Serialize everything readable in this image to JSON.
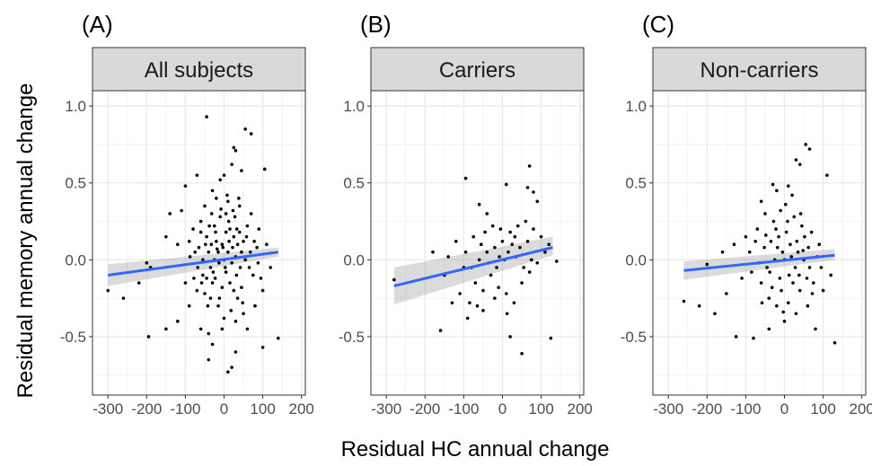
{
  "xlabel": "Residual HC annual change",
  "ylabel": "Residual memory annual change",
  "chart_data": [
    {
      "type": "scatter",
      "panel": "(A)",
      "title": "All subjects",
      "xlim": [
        -340,
        210
      ],
      "ylim": [
        -0.88,
        1.1
      ],
      "xticks": [
        -300,
        -200,
        -100,
        0,
        100,
        200
      ],
      "xtick_labels": [
        "-300",
        "-200",
        "-100",
        "0",
        "100",
        "200"
      ],
      "yticks": [
        -0.5,
        0.0,
        0.5,
        1.0
      ],
      "ytick_labels": [
        "-0.5",
        "0.0",
        "0.5",
        "1.0"
      ],
      "grid": true,
      "fit": {
        "x": [
          -300,
          140
        ],
        "y": [
          -0.1,
          0.05
        ],
        "band_lo": [
          -0.17,
          0.02
        ],
        "band_hi": [
          -0.03,
          0.08
        ]
      },
      "points": [
        [
          -45,
          0.93
        ],
        [
          55,
          0.85
        ],
        [
          70,
          0.82
        ],
        [
          25,
          0.73
        ],
        [
          30,
          0.71
        ],
        [
          105,
          0.59
        ],
        [
          -70,
          0.55
        ],
        [
          -10,
          0.52
        ],
        [
          45,
          0.58
        ],
        [
          20,
          0.62
        ],
        [
          0,
          0.55
        ],
        [
          -30,
          0.45
        ],
        [
          -100,
          0.48
        ],
        [
          -140,
          0.3
        ],
        [
          -150,
          0.15
        ],
        [
          -110,
          0.32
        ],
        [
          -200,
          -0.02
        ],
        [
          -190,
          -0.05
        ],
        [
          -260,
          -0.25
        ],
        [
          -300,
          -0.2
        ],
        [
          -220,
          -0.15
        ],
        [
          -195,
          -0.5
        ],
        [
          -150,
          -0.45
        ],
        [
          -120,
          -0.4
        ],
        [
          -90,
          -0.3
        ],
        [
          -60,
          -0.45
        ],
        [
          -30,
          -0.55
        ],
        [
          -40,
          -0.65
        ],
        [
          20,
          -0.7
        ],
        [
          10,
          -0.73
        ],
        [
          30,
          -0.6
        ],
        [
          60,
          -0.45
        ],
        [
          100,
          -0.57
        ],
        [
          140,
          -0.51
        ],
        [
          -40,
          -0.48
        ],
        [
          -5,
          -0.45
        ],
        [
          -80,
          0.2
        ],
        [
          -60,
          0.25
        ],
        [
          -120,
          0.1
        ],
        [
          -100,
          -0.15
        ],
        [
          -70,
          -0.2
        ],
        [
          -50,
          0.35
        ],
        [
          -20,
          0.4
        ],
        [
          10,
          0.38
        ],
        [
          40,
          0.35
        ],
        [
          70,
          0.3
        ],
        [
          90,
          0.2
        ],
        [
          110,
          0.1
        ],
        [
          120,
          -0.05
        ],
        [
          100,
          -0.2
        ],
        [
          80,
          -0.3
        ],
        [
          50,
          -0.35
        ],
        [
          30,
          -0.4
        ],
        [
          0,
          -0.38
        ],
        [
          -15,
          -0.3
        ],
        [
          -35,
          -0.25
        ],
        [
          -55,
          -0.1
        ],
        [
          -75,
          0.05
        ],
        [
          -90,
          0.12
        ],
        [
          -45,
          0.15
        ],
        [
          -25,
          0.22
        ],
        [
          -10,
          0.28
        ],
        [
          5,
          0.3
        ],
        [
          15,
          0.2
        ],
        [
          25,
          0.15
        ],
        [
          35,
          0.1
        ],
        [
          45,
          0.05
        ],
        [
          55,
          0.0
        ],
        [
          65,
          -0.05
        ],
        [
          75,
          -0.1
        ],
        [
          85,
          0.08
        ],
        [
          95,
          -0.12
        ],
        [
          -5,
          0.1
        ],
        [
          -15,
          0.05
        ],
        [
          -25,
          0.0
        ],
        [
          -35,
          -0.05
        ],
        [
          -45,
          -0.12
        ],
        [
          -55,
          0.0
        ],
        [
          -65,
          0.08
        ],
        [
          5,
          -0.08
        ],
        [
          15,
          -0.15
        ],
        [
          25,
          -0.2
        ],
        [
          35,
          -0.25
        ],
        [
          45,
          -0.18
        ],
        [
          0,
          0.0
        ],
        [
          10,
          0.05
        ],
        [
          20,
          -0.02
        ],
        [
          -20,
          0.12
        ],
        [
          30,
          0.02
        ],
        [
          -30,
          -0.15
        ],
        [
          40,
          0.18
        ],
        [
          -40,
          0.05
        ],
        [
          50,
          0.12
        ],
        [
          -50,
          -0.22
        ],
        [
          60,
          0.22
        ],
        [
          -60,
          0.18
        ],
        [
          5,
          0.18
        ],
        [
          -5,
          -0.18
        ],
        [
          12,
          0.25
        ],
        [
          -12,
          -0.25
        ],
        [
          22,
          0.08
        ],
        [
          -22,
          0.18
        ],
        [
          32,
          -0.1
        ],
        [
          -32,
          0.3
        ],
        [
          42,
          -0.05
        ],
        [
          -42,
          -0.3
        ],
        [
          8,
          0.42
        ],
        [
          -8,
          0.33
        ],
        [
          18,
          -0.33
        ],
        [
          -18,
          0.07
        ],
        [
          28,
          0.28
        ],
        [
          -28,
          -0.08
        ],
        [
          38,
          0.4
        ],
        [
          -38,
          0.22
        ],
        [
          48,
          -0.28
        ],
        [
          -48,
          0.1
        ],
        [
          58,
          0.15
        ],
        [
          -58,
          -0.15
        ],
        [
          68,
          0.05
        ],
        [
          -68,
          -0.05
        ],
        [
          78,
          0.12
        ],
        [
          -78,
          -0.12
        ],
        [
          88,
          -0.02
        ],
        [
          -88,
          0.02
        ],
        [
          3,
          -0.05
        ],
        [
          -3,
          0.08
        ],
        [
          13,
          0.12
        ],
        [
          -13,
          -0.02
        ],
        [
          23,
          0.32
        ],
        [
          -23,
          -0.12
        ],
        [
          33,
          0.2
        ],
        [
          -33,
          0.1
        ]
      ]
    },
    {
      "type": "scatter",
      "panel": "(B)",
      "title": "Carriers",
      "xlim": [
        -340,
        210
      ],
      "ylim": [
        -0.88,
        1.1
      ],
      "xticks": [
        -300,
        -200,
        -100,
        0,
        100,
        200
      ],
      "xtick_labels": [
        "-300",
        "-200",
        "-100",
        "0",
        "100",
        "200"
      ],
      "yticks": [
        -0.5,
        0.0,
        0.5,
        1.0
      ],
      "ytick_labels": [
        "-0.5",
        "0.0",
        "0.5",
        "1.0"
      ],
      "grid": true,
      "fit": {
        "x": [
          -280,
          130
        ],
        "y": [
          -0.17,
          0.08
        ],
        "band_lo": [
          -0.29,
          0.03
        ],
        "band_hi": [
          -0.05,
          0.15
        ]
      },
      "points": [
        [
          -95,
          0.53
        ],
        [
          70,
          0.61
        ],
        [
          65,
          0.47
        ],
        [
          80,
          0.44
        ],
        [
          90,
          0.38
        ],
        [
          10,
          0.49
        ],
        [
          -60,
          0.36
        ],
        [
          -40,
          0.3
        ],
        [
          -120,
          0.12
        ],
        [
          -100,
          -0.05
        ],
        [
          -180,
          0.05
        ],
        [
          -280,
          -0.13
        ],
        [
          -160,
          -0.46
        ],
        [
          -90,
          -0.38
        ],
        [
          -50,
          -0.33
        ],
        [
          -20,
          -0.25
        ],
        [
          20,
          -0.5
        ],
        [
          50,
          -0.61
        ],
        [
          125,
          -0.51
        ],
        [
          140,
          -0.01
        ],
        [
          120,
          0.1
        ],
        [
          100,
          0.15
        ],
        [
          80,
          0.2
        ],
        [
          60,
          0.25
        ],
        [
          40,
          0.22
        ],
        [
          20,
          0.18
        ],
        [
          0,
          0.12
        ],
        [
          -20,
          0.08
        ],
        [
          -40,
          0.05
        ],
        [
          -60,
          0.0
        ],
        [
          -80,
          -0.05
        ],
        [
          -70,
          -0.15
        ],
        [
          -50,
          -0.2
        ],
        [
          -30,
          -0.1
        ],
        [
          -10,
          -0.18
        ],
        [
          10,
          -0.22
        ],
        [
          30,
          -0.28
        ],
        [
          50,
          -0.15
        ],
        [
          70,
          -0.08
        ],
        [
          90,
          -0.02
        ],
        [
          110,
          0.05
        ],
        [
          -110,
          -0.22
        ],
        [
          -130,
          -0.28
        ],
        [
          -140,
          0.02
        ],
        [
          -150,
          -0.1
        ],
        [
          -45,
          0.18
        ],
        [
          -25,
          0.22
        ],
        [
          -5,
          0.2
        ],
        [
          15,
          0.05
        ],
        [
          35,
          0.02
        ],
        [
          55,
          -0.05
        ],
        [
          75,
          0.0
        ],
        [
          -15,
          -0.05
        ],
        [
          5,
          0.0
        ],
        [
          25,
          0.1
        ],
        [
          45,
          0.08
        ],
        [
          65,
          0.12
        ],
        [
          -35,
          -0.02
        ],
        [
          -55,
          0.1
        ],
        [
          -75,
          0.15
        ],
        [
          -85,
          -0.28
        ],
        [
          -65,
          -0.3
        ],
        [
          -95,
          0.05
        ],
        [
          12,
          -0.35
        ],
        [
          32,
          0.15
        ],
        [
          -8,
          0.02
        ]
      ]
    },
    {
      "type": "scatter",
      "panel": "(C)",
      "title": "Non-carriers",
      "xlim": [
        -340,
        210
      ],
      "ylim": [
        -0.88,
        1.1
      ],
      "xticks": [
        -300,
        -200,
        -100,
        0,
        100,
        200
      ],
      "xtick_labels": [
        "-300",
        "-200",
        "-100",
        "0",
        "100",
        "200"
      ],
      "yticks": [
        -0.5,
        0.0,
        0.5,
        1.0
      ],
      "ytick_labels": [
        "-0.5",
        "0.0",
        "0.5",
        "1.0"
      ],
      "grid": true,
      "fit": {
        "x": [
          -260,
          130
        ],
        "y": [
          -0.07,
          0.03
        ],
        "band_lo": [
          -0.13,
          0.0
        ],
        "band_hi": [
          -0.01,
          0.07
        ]
      },
      "points": [
        [
          55,
          0.75
        ],
        [
          65,
          0.72
        ],
        [
          30,
          0.65
        ],
        [
          40,
          0.62
        ],
        [
          110,
          0.55
        ],
        [
          -30,
          0.49
        ],
        [
          -20,
          0.45
        ],
        [
          10,
          0.48
        ],
        [
          20,
          0.42
        ],
        [
          -60,
          0.38
        ],
        [
          -100,
          0.15
        ],
        [
          -130,
          0.1
        ],
        [
          -200,
          -0.03
        ],
        [
          -260,
          -0.27
        ],
        [
          -220,
          -0.3
        ],
        [
          -180,
          -0.35
        ],
        [
          -125,
          -0.5
        ],
        [
          -80,
          -0.51
        ],
        [
          -40,
          -0.45
        ],
        [
          0,
          -0.4
        ],
        [
          30,
          -0.35
        ],
        [
          60,
          -0.3
        ],
        [
          80,
          -0.45
        ],
        [
          130,
          -0.54
        ],
        [
          100,
          -0.2
        ],
        [
          120,
          -0.1
        ],
        [
          -50,
          0.3
        ],
        [
          -10,
          0.32
        ],
        [
          25,
          0.28
        ],
        [
          45,
          0.22
        ],
        [
          70,
          0.18
        ],
        [
          90,
          0.1
        ],
        [
          -70,
          0.2
        ],
        [
          -90,
          0.05
        ],
        [
          -110,
          -0.12
        ],
        [
          -150,
          -0.22
        ],
        [
          -160,
          0.05
        ],
        [
          -60,
          -0.15
        ],
        [
          -40,
          -0.25
        ],
        [
          -20,
          -0.3
        ],
        [
          10,
          -0.28
        ],
        [
          40,
          -0.2
        ],
        [
          75,
          -0.15
        ],
        [
          95,
          -0.05
        ],
        [
          -35,
          0.12
        ],
        [
          -15,
          0.15
        ],
        [
          5,
          0.18
        ],
        [
          15,
          0.1
        ],
        [
          35,
          0.05
        ],
        [
          50,
          0.0
        ],
        [
          65,
          -0.05
        ],
        [
          85,
          0.02
        ],
        [
          -5,
          0.05
        ],
        [
          -25,
          0.0
        ],
        [
          -45,
          -0.05
        ],
        [
          -65,
          -0.02
        ],
        [
          -85,
          -0.08
        ],
        [
          0,
          0.0
        ],
        [
          12,
          -0.1
        ],
        [
          22,
          -0.15
        ],
        [
          32,
          0.12
        ],
        [
          -12,
          -0.12
        ],
        [
          -22,
          0.2
        ],
        [
          -32,
          -0.18
        ],
        [
          42,
          0.3
        ],
        [
          52,
          0.15
        ],
        [
          62,
          0.08
        ],
        [
          72,
          -0.22
        ],
        [
          -52,
          0.08
        ],
        [
          -75,
          0.12
        ],
        [
          8,
          0.25
        ],
        [
          -8,
          -0.2
        ],
        [
          18,
          0.02
        ],
        [
          28,
          -0.05
        ],
        [
          38,
          -0.1
        ],
        [
          48,
          0.06
        ],
        [
          58,
          -0.12
        ],
        [
          -18,
          0.08
        ],
        [
          -28,
          0.25
        ],
        [
          -38,
          -0.08
        ],
        [
          -48,
          0.16
        ],
        [
          -58,
          -0.28
        ],
        [
          3,
          0.36
        ],
        [
          -3,
          -0.34
        ]
      ]
    }
  ]
}
